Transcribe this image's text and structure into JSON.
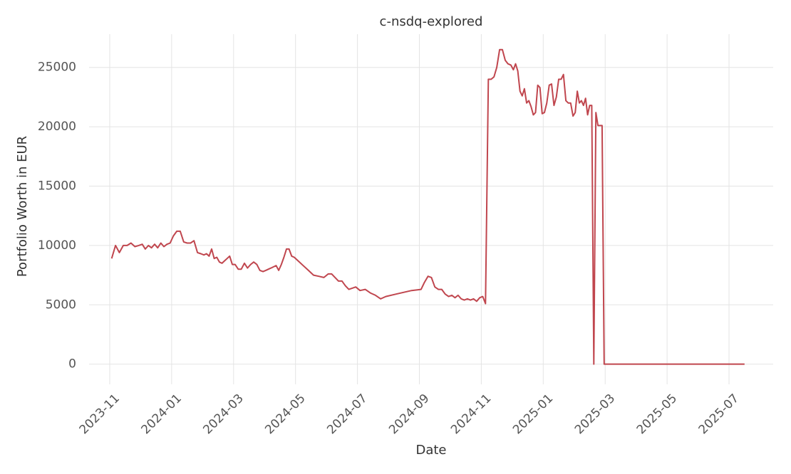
{
  "chart_data": {
    "type": "line",
    "title": "c-nsdq-explored",
    "x_label": "Date",
    "y_label": "Portfolio Worth in EUR",
    "xlim": [
      "2023-10",
      "2025-08"
    ],
    "xticks": [
      "2023-11",
      "2024-01",
      "2024-03",
      "2024-05",
      "2024-07",
      "2024-09",
      "2024-11",
      "2025-01",
      "2025-03",
      "2025-05",
      "2025-07"
    ],
    "ylim": [
      -1700,
      27800
    ],
    "yticks": [
      0,
      5000,
      10000,
      15000,
      20000,
      25000
    ],
    "grid": true,
    "series": [
      {
        "name": "c-nsdq-explored",
        "color": "#c0464e",
        "x": [
          "2023-11",
          "2023-11",
          "2023-11",
          "2023-11",
          "2023-11",
          "2023-11",
          "2023-11",
          "2023-11",
          "2023-12",
          "2023-12",
          "2023-12",
          "2023-12",
          "2023-12",
          "2023-12",
          "2023-12",
          "2023-12",
          "2023-12",
          "2023-12",
          "2024-01",
          "2024-01",
          "2024-01",
          "2024-01",
          "2024-01",
          "2024-01",
          "2024-01",
          "2024-01",
          "2024-01",
          "2024-02",
          "2024-02",
          "2024-02",
          "2024-02",
          "2024-02",
          "2024-02",
          "2024-02",
          "2024-02",
          "2024-02",
          "2024-02",
          "2024-02",
          "2024-02",
          "2024-03",
          "2024-03",
          "2024-03",
          "2024-03",
          "2024-03",
          "2024-03",
          "2024-03",
          "2024-03",
          "2024-03",
          "2024-03",
          "2024-04",
          "2024-04",
          "2024-04",
          "2024-04",
          "2024-04",
          "2024-04",
          "2024-04",
          "2024-04",
          "2024-04",
          "2024-04",
          "2024-04",
          "2024-04",
          "2024-05",
          "2024-05",
          "2024-05",
          "2024-05",
          "2024-05",
          "2024-05",
          "2024-06",
          "2024-06",
          "2024-06",
          "2024-06",
          "2024-06",
          "2024-06",
          "2024-06",
          "2024-06",
          "2024-06",
          "2024-07",
          "2024-07",
          "2024-07",
          "2024-07",
          "2024-07",
          "2024-07",
          "2024-08",
          "2024-08",
          "2024-09",
          "2024-09",
          "2024-09",
          "2024-09",
          "2024-09",
          "2024-09",
          "2024-09",
          "2024-09",
          "2024-09",
          "2024-10",
          "2024-10",
          "2024-10",
          "2024-10",
          "2024-10",
          "2024-10",
          "2024-10",
          "2024-10",
          "2024-10",
          "2024-10",
          "2024-11",
          "2024-11",
          "2024-11",
          "2024-11",
          "2024-11",
          "2024-11",
          "2024-11",
          "2024-11",
          "2024-11",
          "2024-11",
          "2024-11",
          "2024-12",
          "2024-12",
          "2024-12",
          "2024-12",
          "2024-12",
          "2024-12",
          "2024-12",
          "2024-12",
          "2024-12",
          "2024-12",
          "2024-12",
          "2024-12",
          "2024-12",
          "2024-12",
          "2025-01",
          "2025-01",
          "2025-01",
          "2025-01",
          "2025-01",
          "2025-01",
          "2025-01",
          "2025-01",
          "2025-01",
          "2025-01",
          "2025-01",
          "2025-01",
          "2025-01",
          "2025-02",
          "2025-02",
          "2025-02",
          "2025-02",
          "2025-02",
          "2025-02",
          "2025-02",
          "2025-02",
          "2025-02",
          "2025-02",
          "2025-02",
          "2025-02",
          "2025-02",
          "2025-02",
          "2025-02",
          "2025-03",
          "2025-04",
          "2025-05",
          "2025-06",
          "2025-07"
        ],
        "values": [
          8900,
          10000,
          9400,
          10000,
          10000,
          10200,
          9900,
          10000,
          10100,
          9700,
          10000,
          9800,
          10100,
          9800,
          10200,
          9900,
          10100,
          10200,
          10800,
          11200,
          11200,
          10300,
          10200,
          10200,
          10400,
          9400,
          9300,
          9200,
          9300,
          9100,
          9700,
          8900,
          9000,
          8600,
          8500,
          8700,
          8900,
          9100,
          8400,
          8400,
          8000,
          8000,
          8500,
          8100,
          8400,
          8600,
          8400,
          7900,
          7800,
          7900,
          8000,
          8100,
          8200,
          8300,
          7900,
          8400,
          9000,
          9700,
          9700,
          9100,
          9000,
          8700,
          8300,
          7900,
          7500,
          7400,
          7300,
          7600,
          7600,
          7300,
          7000,
          7000,
          6600,
          6300,
          6400,
          6500,
          6200,
          6300,
          6000,
          5800,
          5500,
          5700,
          5900,
          6200,
          6300,
          6900,
          7400,
          7300,
          6500,
          6300,
          6300,
          5900,
          5700,
          5800,
          5600,
          5800,
          5500,
          5400,
          5500,
          5400,
          5500,
          5300,
          5600,
          5700,
          5100,
          24000,
          24000,
          24200,
          25000,
          26500,
          26500,
          25600,
          25300,
          25200,
          24800,
          25300,
          24700,
          23000,
          22600,
          23200,
          22000,
          22200,
          21700,
          21000,
          21200,
          23500,
          23300,
          21100,
          21200,
          22000,
          23500,
          23600,
          21800,
          22500,
          24000,
          24000,
          24400,
          22200,
          22000,
          22000,
          20900,
          21200,
          23000,
          22000,
          22200,
          21800,
          22400,
          21000,
          21800,
          21800,
          0,
          21200,
          20100,
          20100,
          20100,
          0,
          0,
          0,
          0,
          0,
          0
        ]
      }
    ]
  }
}
